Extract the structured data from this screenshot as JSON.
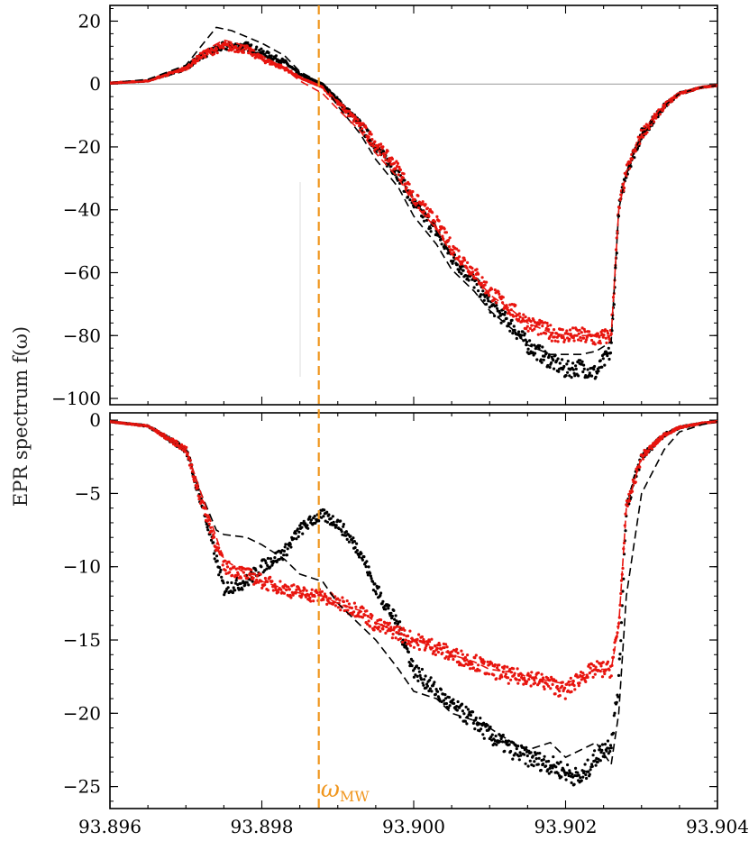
{
  "chart_data": [
    {
      "type": "scatter",
      "panel": "top",
      "xlim": [
        93.896,
        93.904
      ],
      "ylim": [
        -102,
        25
      ],
      "yticks": [
        20,
        0,
        -20,
        -40,
        -60,
        -80,
        -100
      ],
      "zero_line": true,
      "series": [
        {
          "style": "points",
          "color": "#000000",
          "x": [
            93.896,
            93.8965,
            93.897,
            93.8972,
            93.8975,
            93.8978,
            93.898,
            93.8983,
            93.8985,
            93.8988,
            93.899,
            93.8993,
            93.8995,
            93.8998,
            93.9,
            93.9003,
            93.9005,
            93.9008,
            93.901,
            93.9013,
            93.9015,
            93.9018,
            93.902,
            93.9022,
            93.9024,
            93.9026,
            93.9027,
            93.9028,
            93.903,
            93.9033,
            93.9035,
            93.9038,
            93.904
          ],
          "y": [
            0.3,
            1,
            5,
            9,
            12,
            12,
            10,
            7,
            3,
            0,
            -5,
            -13,
            -20,
            -29,
            -38,
            -47,
            -55,
            -63,
            -70,
            -77,
            -83,
            -88,
            -91,
            -90,
            -92,
            -85,
            -40,
            -28,
            -16,
            -7,
            -3,
            -1,
            -0.5
          ]
        },
        {
          "style": "points",
          "color": "#e8150f",
          "x": [
            93.896,
            93.8965,
            93.897,
            93.8972,
            93.8975,
            93.8978,
            93.898,
            93.8983,
            93.8985,
            93.8988,
            93.899,
            93.8993,
            93.8995,
            93.8998,
            93.9,
            93.9003,
            93.9005,
            93.9008,
            93.901,
            93.9013,
            93.9015,
            93.9018,
            93.902,
            93.9022,
            93.9024,
            93.9026,
            93.9027,
            93.9028,
            93.903,
            93.9033,
            93.9035,
            93.9038,
            93.904
          ],
          "y": [
            0.3,
            1,
            5,
            9,
            12,
            11,
            8,
            5,
            2,
            -1,
            -6,
            -13,
            -19,
            -27,
            -36,
            -44,
            -52,
            -60,
            -66,
            -72,
            -76,
            -79,
            -80,
            -80,
            -81,
            -80,
            -40,
            -28,
            -16,
            -7,
            -3,
            -1,
            -0.5
          ]
        },
        {
          "style": "dashed",
          "color": "#000000",
          "x": [
            93.896,
            93.8965,
            93.897,
            93.8972,
            93.8974,
            93.8976,
            93.8978,
            93.898,
            93.8983,
            93.8985,
            93.8988,
            93.899,
            93.8993,
            93.8995,
            93.8998,
            93.9,
            93.9003,
            93.9005,
            93.9008,
            93.901,
            93.9013,
            93.9015,
            93.9018,
            93.902,
            93.9022,
            93.9024,
            93.9026,
            93.9027,
            93.9028,
            93.903,
            93.9033,
            93.9035,
            93.9038,
            93.904
          ],
          "y": [
            0.3,
            1.5,
            6,
            12,
            18,
            17,
            15,
            13,
            9,
            4,
            0,
            -7,
            -16,
            -24,
            -33,
            -42,
            -51,
            -59,
            -66,
            -72,
            -78,
            -83,
            -86,
            -86,
            -86,
            -85,
            -82,
            -40,
            -28,
            -16,
            -7,
            -3,
            -1,
            -0.5
          ]
        },
        {
          "style": "dashed",
          "color": "#e8150f",
          "x": [
            93.896,
            93.8965,
            93.897,
            93.8972,
            93.8975,
            93.8978,
            93.898,
            93.8983,
            93.8985,
            93.8988,
            93.899,
            93.8993,
            93.8995,
            93.8998,
            93.9,
            93.9003,
            93.9005,
            93.9008,
            93.901,
            93.9013,
            93.9015,
            93.9018,
            93.902,
            93.9022,
            93.9024,
            93.9026,
            93.9027,
            93.9028,
            93.903,
            93.9033,
            93.9035,
            93.9038,
            93.904
          ],
          "y": [
            0.3,
            1,
            5,
            10,
            14,
            12,
            9,
            5,
            1,
            -3,
            -8,
            -15,
            -22,
            -30,
            -38,
            -46,
            -54,
            -61,
            -67,
            -72,
            -76,
            -79,
            -80,
            -80,
            -80,
            -80,
            -40,
            -28,
            -16,
            -7,
            -3,
            -1,
            -0.5
          ]
        }
      ]
    },
    {
      "type": "scatter",
      "panel": "bottom",
      "xlim": [
        93.896,
        93.904
      ],
      "ylim": [
        -26.5,
        0.5
      ],
      "xticks": [
        "93.896",
        "93.898",
        "93.900",
        "93.902",
        "93.904"
      ],
      "yticks": [
        "0",
        "−5",
        "−10",
        "−15",
        "−20",
        "−25"
      ],
      "series": [
        {
          "style": "points",
          "color": "#000000",
          "x": [
            93.896,
            93.8965,
            93.897,
            93.8972,
            93.8974,
            93.8975,
            93.8978,
            93.898,
            93.8983,
            93.8985,
            93.8987,
            93.8988,
            93.899,
            93.8993,
            93.8995,
            93.8998,
            93.9,
            93.9003,
            93.9005,
            93.9008,
            93.901,
            93.9013,
            93.9015,
            93.9018,
            93.902,
            93.9022,
            93.9024,
            93.9026,
            93.9027,
            93.9028,
            93.903,
            93.9033,
            93.9035,
            93.9038,
            93.904
          ],
          "y": [
            -0.1,
            -0.4,
            -2,
            -5.5,
            -9.5,
            -11.5,
            -11,
            -10,
            -9,
            -7.5,
            -6.7,
            -6.5,
            -7,
            -9,
            -11.5,
            -14,
            -17,
            -18.5,
            -19.5,
            -20.5,
            -21.5,
            -22.5,
            -23,
            -23.5,
            -24,
            -24.5,
            -23,
            -22,
            -18,
            -6,
            -2.5,
            -1,
            -0.5,
            -0.2,
            -0.1
          ]
        },
        {
          "style": "points",
          "color": "#e8150f",
          "x": [
            93.896,
            93.8965,
            93.897,
            93.8972,
            93.8974,
            93.8975,
            93.8978,
            93.898,
            93.8983,
            93.8985,
            93.8988,
            93.899,
            93.8993,
            93.8995,
            93.8998,
            93.9,
            93.9003,
            93.9005,
            93.9008,
            93.901,
            93.9013,
            93.9015,
            93.9018,
            93.902,
            93.9022,
            93.9024,
            93.9026,
            93.9027,
            93.9028,
            93.903,
            93.9033,
            93.9035,
            93.9038,
            93.904
          ],
          "y": [
            -0.1,
            -0.4,
            -2,
            -5.5,
            -8.5,
            -10,
            -10.5,
            -11,
            -11.5,
            -11.8,
            -12,
            -12.5,
            -13,
            -14,
            -14.5,
            -15,
            -15.5,
            -16,
            -16.5,
            -17,
            -17.5,
            -17.5,
            -18,
            -18.5,
            -17.5,
            -17,
            -17,
            -14,
            -6,
            -2.5,
            -1,
            -0.5,
            -0.2,
            -0.1
          ]
        },
        {
          "style": "dashed",
          "color": "#000000",
          "x": [
            93.896,
            93.8965,
            93.897,
            93.8972,
            93.8974,
            93.8975,
            93.8978,
            93.898,
            93.8983,
            93.8985,
            93.8988,
            93.899,
            93.8993,
            93.8995,
            93.8998,
            93.9,
            93.9003,
            93.9005,
            93.9008,
            93.901,
            93.9013,
            93.9015,
            93.9018,
            93.902,
            93.9022,
            93.9024,
            93.9026,
            93.9027,
            93.9028,
            93.903,
            93.9033,
            93.9035,
            93.9038,
            93.904
          ],
          "y": [
            -0.1,
            -0.4,
            -2,
            -5,
            -7.5,
            -7.8,
            -8,
            -8.5,
            -9.5,
            -10.5,
            -11,
            -12.5,
            -14,
            -15,
            -17,
            -18.5,
            -19,
            -20,
            -20.5,
            -21,
            -22,
            -22.5,
            -22,
            -23,
            -22.5,
            -22,
            -23.5,
            -20,
            -12,
            -5,
            -2,
            -0.8,
            -0.3,
            -0.1
          ]
        },
        {
          "style": "dashed",
          "color": "#e8150f",
          "x": [
            93.896,
            93.8965,
            93.897,
            93.8972,
            93.8974,
            93.8975,
            93.8978,
            93.898,
            93.8983,
            93.8985,
            93.8988,
            93.899,
            93.8993,
            93.8995,
            93.8998,
            93.9,
            93.9003,
            93.9005,
            93.9008,
            93.901,
            93.9013,
            93.9015,
            93.9018,
            93.902,
            93.9022,
            93.9024,
            93.9026,
            93.9027,
            93.9028,
            93.903,
            93.9033,
            93.9035,
            93.9038,
            93.904
          ],
          "y": [
            -0.1,
            -0.4,
            -2,
            -5,
            -8,
            -9.5,
            -10.5,
            -11,
            -11.5,
            -11.8,
            -12,
            -12.5,
            -13,
            -13.8,
            -14.5,
            -15,
            -15.5,
            -16,
            -16.5,
            -17,
            -17.2,
            -17.5,
            -17.8,
            -18,
            -17.5,
            -17,
            -17,
            -14,
            -6,
            -2.5,
            -1,
            -0.5,
            -0.2,
            -0.1
          ]
        }
      ]
    }
  ],
  "ylabel": "EPR spectrum f(ω)",
  "marker": {
    "x": 93.89875,
    "label": "ω",
    "subscript": "MW",
    "color": "#f0961e"
  },
  "colors": {
    "black_series": "#000000",
    "red_series": "#e8150f",
    "marker": "#f0961e"
  }
}
